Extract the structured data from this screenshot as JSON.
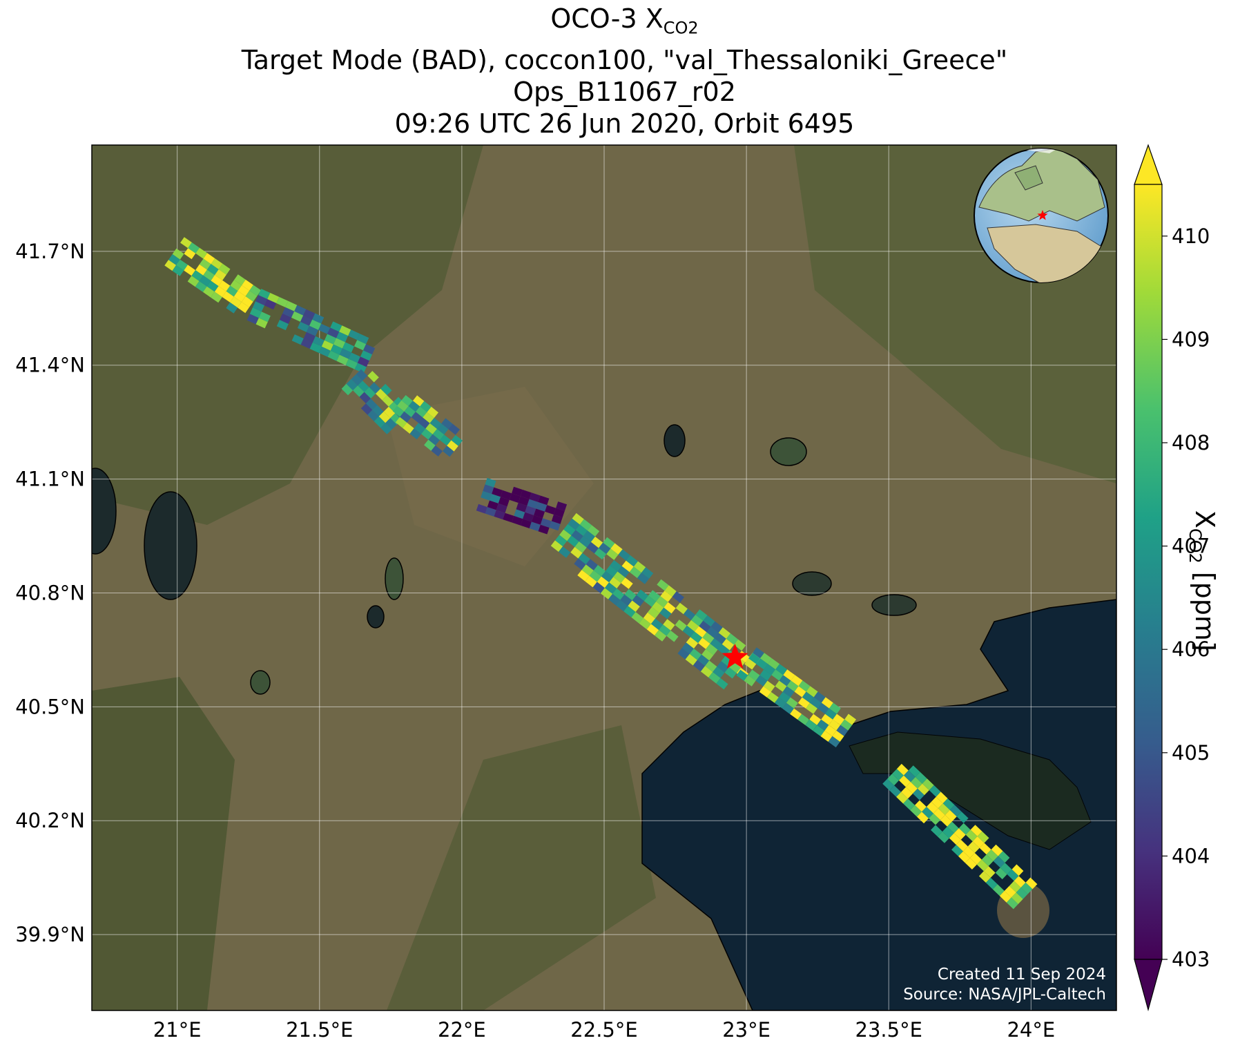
{
  "title": {
    "line1_prefix": "OCO-3 X",
    "line1_sub": "CO2",
    "line2": "Target Mode (BAD), coccon100, \"val_Thessaloniki_Greece\"",
    "line3": "Ops_B11067_r02",
    "line4": "09:26 UTC 26 Jun 2020, Orbit 6495"
  },
  "map": {
    "lon_range": [
      20.7,
      24.3
    ],
    "lat_range": [
      39.7,
      41.98
    ],
    "lon_ticks": [
      21.0,
      21.5,
      22.0,
      22.5,
      23.0,
      23.5,
      24.0
    ],
    "lon_tick_labels": [
      "21°E",
      "21.5°E",
      "22°E",
      "22.5°E",
      "23°E",
      "23.5°E",
      "24°E"
    ],
    "lat_ticks": [
      41.7,
      41.4,
      41.1,
      40.8,
      40.5,
      40.2,
      39.9
    ],
    "lat_tick_labels": [
      "41.7°N",
      "41.4°N",
      "41.1°N",
      "40.8°N",
      "40.5°N",
      "40.2°N",
      "39.9°N"
    ],
    "target_marker": {
      "lon": 22.96,
      "lat": 40.63,
      "color": "#ff0000"
    },
    "footer_line1": "Created 11 Sep 2024",
    "footer_line2": "Source: NASA/JPL-Caltech"
  },
  "colorbar": {
    "min": 403,
    "max": 410.5,
    "ticks": [
      403,
      404,
      405,
      406,
      407,
      408,
      409,
      410
    ],
    "tick_labels": [
      "403",
      "404",
      "405",
      "406",
      "407",
      "408",
      "409",
      "410"
    ],
    "label_prefix": "X",
    "label_sub": "CO2",
    "label_suffix": " [ppm]",
    "colormap": "viridis"
  },
  "chart_data": {
    "type": "heatmap",
    "variable": "XCO2",
    "units": "ppm",
    "swath_segments": [
      {
        "lon_start": 20.99,
        "lat_start": 41.7,
        "lon_end": 21.26,
        "lat_end": 41.56,
        "mean_ppm": 409.5
      },
      {
        "lon_start": 21.27,
        "lat_start": 41.56,
        "lon_end": 21.68,
        "lat_end": 41.42,
        "mean_ppm": 407.0
      },
      {
        "lon_start": 21.62,
        "lat_start": 41.37,
        "lon_end": 21.78,
        "lat_end": 41.25,
        "mean_ppm": 407.5
      },
      {
        "lon_start": 21.78,
        "lat_start": 41.3,
        "lon_end": 21.98,
        "lat_end": 41.18,
        "mean_ppm": 407.5
      },
      {
        "lon_start": 22.07,
        "lat_start": 41.06,
        "lon_end": 22.35,
        "lat_end": 40.99,
        "mean_ppm": 403.5
      },
      {
        "lon_start": 22.35,
        "lat_start": 40.96,
        "lon_end": 23.0,
        "lat_end": 40.58,
        "mean_ppm": 408.0
      },
      {
        "lon_start": 23.0,
        "lat_start": 40.62,
        "lon_end": 23.35,
        "lat_end": 40.43,
        "mean_ppm": 408.5
      },
      {
        "lon_start": 23.52,
        "lat_start": 40.33,
        "lon_end": 23.98,
        "lat_end": 40.0,
        "mean_ppm": 409.5
      }
    ]
  }
}
